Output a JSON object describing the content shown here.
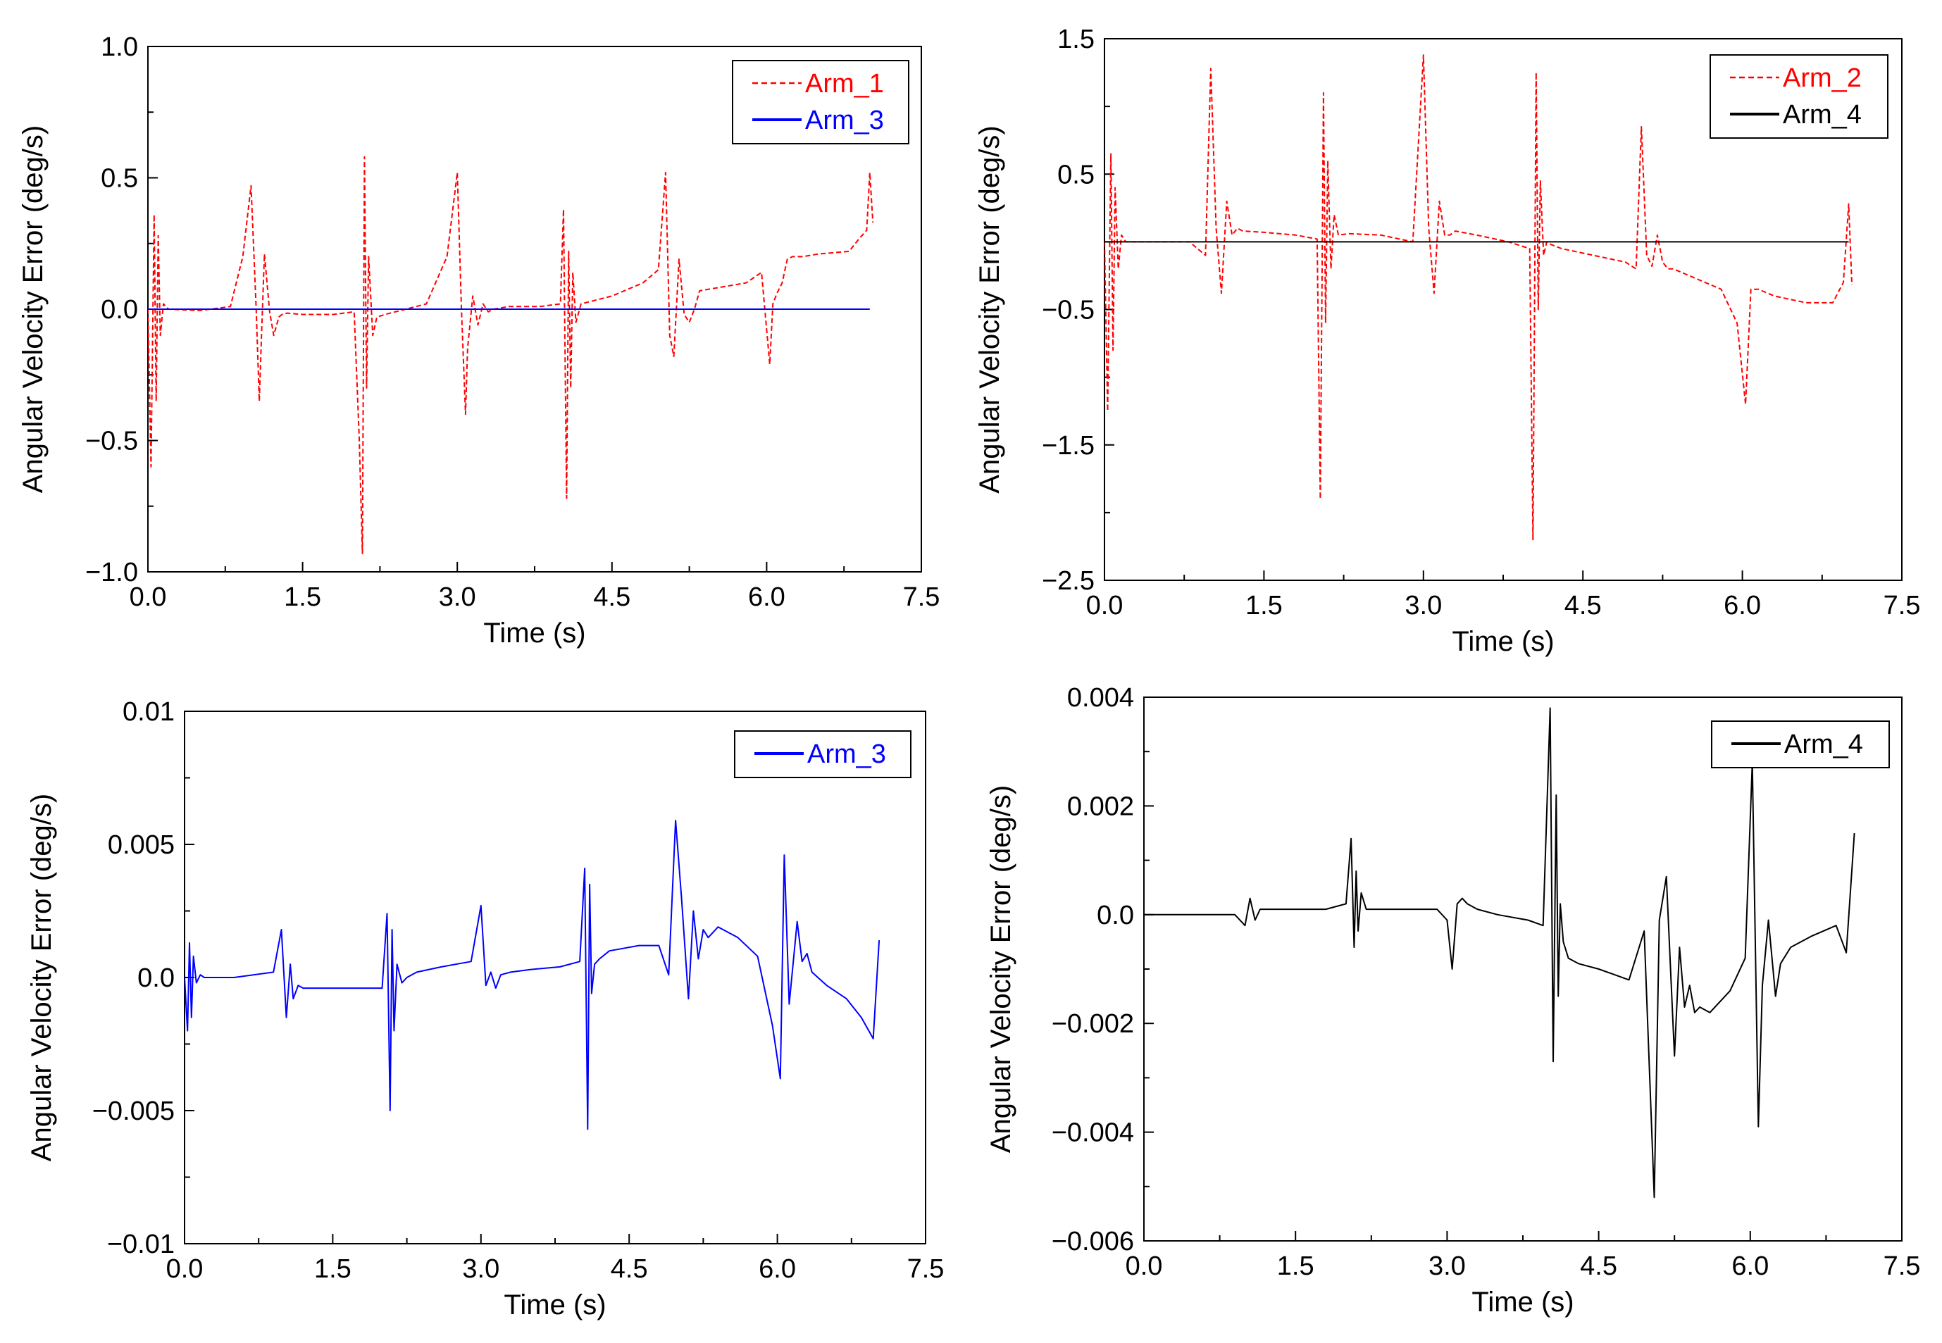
{
  "chart_data": [
    {
      "type": "line",
      "xlabel": "Time (s)",
      "ylabel": "Angular Velocity Error (deg/s)",
      "xlim": [
        0,
        7.5
      ],
      "ylim": [
        -1.0,
        1.0
      ],
      "x_ticks": [
        "0.0",
        "1.5",
        "3.0",
        "4.5",
        "6.0",
        "7.5"
      ],
      "y_ticks": [
        "1.0",
        "0.5",
        "0.0",
        "−0.5",
        "−1.0"
      ],
      "y_tick_values": [
        1.0,
        0.5,
        0.0,
        -0.5,
        -1.0
      ],
      "legend": "top-right",
      "series": [
        {
          "name": "Arm_1",
          "color": "#ff0000",
          "dash": "dashed",
          "x": [
            0,
            0.03,
            0.06,
            0.08,
            0.1,
            0.12,
            0.15,
            0.2,
            0.5,
            0.8,
            0.92,
            1.0,
            1.05,
            1.08,
            1.1,
            1.13,
            1.18,
            1.22,
            1.27,
            1.3,
            1.35,
            1.5,
            1.8,
            2.0,
            2.05,
            2.08,
            2.1,
            2.12,
            2.14,
            2.18,
            2.22,
            2.3,
            2.5,
            2.7,
            2.9,
            3.0,
            3.04,
            3.08,
            3.1,
            3.15,
            3.2,
            3.25,
            3.3,
            3.35,
            3.5,
            3.8,
            4.0,
            4.03,
            4.06,
            4.08,
            4.1,
            4.12,
            4.15,
            4.2,
            4.3,
            4.5,
            4.8,
            4.95,
            5.02,
            5.06,
            5.1,
            5.15,
            5.2,
            5.25,
            5.3,
            5.35,
            5.5,
            5.8,
            5.95,
            6.03,
            6.06,
            6.1,
            6.15,
            6.2,
            6.25,
            6.35,
            6.5,
            6.8,
            6.9,
            6.97,
            7.0,
            7.03
          ],
          "y": [
            0,
            -0.6,
            0.36,
            -0.35,
            0.28,
            -0.1,
            0.02,
            0,
            -0.005,
            0.01,
            0.2,
            0.47,
            0.0,
            -0.35,
            -0.12,
            0.21,
            -0.01,
            -0.1,
            -0.03,
            -0.02,
            -0.015,
            -0.02,
            -0.02,
            -0.01,
            -0.5,
            -0.93,
            0.58,
            -0.3,
            0.2,
            -0.1,
            -0.03,
            -0.02,
            0.0,
            0.02,
            0.2,
            0.52,
            0.0,
            -0.4,
            -0.15,
            0.05,
            -0.06,
            0.02,
            -0.01,
            0.0,
            0.01,
            0.01,
            0.02,
            0.38,
            -0.72,
            0.22,
            -0.3,
            0.14,
            -0.05,
            0.02,
            0.03,
            0.05,
            0.1,
            0.15,
            0.52,
            -0.1,
            -0.18,
            0.19,
            -0.02,
            -0.05,
            0.0,
            0.07,
            0.08,
            0.1,
            0.14,
            -0.21,
            0.02,
            0.06,
            0.1,
            0.19,
            0.2,
            0.2,
            0.21,
            0.22,
            0.27,
            0.3,
            0.52,
            0.33
          ]
        },
        {
          "name": "Arm_3",
          "color": "#0000ff",
          "dash": "solid",
          "x": [
            0,
            7.0
          ],
          "y": [
            0,
            0
          ]
        }
      ]
    },
    {
      "type": "line",
      "xlabel": "Time (s)",
      "ylabel": "Angular Velocity Error (deg/s)",
      "xlim": [
        0,
        7.5
      ],
      "ylim": [
        -2.5,
        1.5
      ],
      "x_ticks": [
        "0.0",
        "1.5",
        "3.0",
        "4.5",
        "6.0",
        "7.5"
      ],
      "y_ticks": [
        "1.5",
        "0.5",
        "−0.5",
        "−1.5",
        "−2.5"
      ],
      "y_tick_values": [
        1.5,
        0.5,
        -0.5,
        -1.5,
        -2.5
      ],
      "legend": "top-right",
      "series": [
        {
          "name": "Arm_2",
          "color": "#ff0000",
          "dash": "dashed",
          "x": [
            0,
            0.03,
            0.06,
            0.08,
            0.1,
            0.13,
            0.16,
            0.2,
            0.5,
            0.8,
            0.95,
            1.0,
            1.05,
            1.1,
            1.15,
            1.2,
            1.25,
            1.3,
            1.5,
            1.8,
            2.0,
            2.03,
            2.06,
            2.08,
            2.1,
            2.13,
            2.16,
            2.2,
            2.3,
            2.6,
            2.9,
            3.0,
            3.05,
            3.1,
            3.15,
            3.2,
            3.25,
            3.3,
            3.5,
            3.8,
            4.0,
            4.03,
            4.06,
            4.08,
            4.1,
            4.13,
            4.16,
            4.2,
            4.3,
            4.6,
            4.9,
            5.0,
            5.05,
            5.1,
            5.15,
            5.2,
            5.25,
            5.3,
            5.35,
            5.5,
            5.8,
            5.95,
            6.03,
            6.08,
            6.15,
            6.3,
            6.6,
            6.85,
            6.95,
            7.0,
            7.03
          ],
          "y": [
            0,
            -1.25,
            0.65,
            -0.8,
            0.4,
            -0.2,
            0.05,
            0,
            0,
            0,
            -0.1,
            1.28,
            0.1,
            -0.38,
            0.3,
            0.05,
            0.1,
            0.08,
            0.07,
            0.05,
            0.02,
            -1.9,
            1.1,
            -0.6,
            0.6,
            -0.2,
            0.2,
            0.05,
            0.06,
            0.05,
            0.0,
            1.38,
            0.1,
            -0.38,
            0.3,
            0.05,
            0.05,
            0.08,
            0.05,
            0.0,
            -0.05,
            -2.2,
            1.25,
            -0.5,
            0.45,
            -0.1,
            0.0,
            -0.02,
            -0.05,
            -0.1,
            -0.15,
            -0.2,
            0.85,
            -0.1,
            -0.18,
            0.05,
            -0.15,
            -0.2,
            -0.2,
            -0.25,
            -0.35,
            -0.6,
            -1.2,
            -0.35,
            -0.35,
            -0.4,
            -0.45,
            -0.45,
            -0.3,
            0.28,
            -0.32
          ]
        },
        {
          "name": "Arm_4",
          "color": "#000000",
          "dash": "solid",
          "x": [
            0,
            7.0
          ],
          "y": [
            0,
            0
          ]
        }
      ]
    },
    {
      "type": "line",
      "xlabel": "Time (s)",
      "ylabel": "Angular Velocity Error (deg/s)",
      "xlim": [
        0,
        7.5
      ],
      "ylim": [
        -0.01,
        0.01
      ],
      "x_ticks": [
        "0.0",
        "1.5",
        "3.0",
        "4.5",
        "6.0",
        "7.5"
      ],
      "y_ticks": [
        "0.01",
        "0.005",
        "0.0",
        "−0.005",
        "−0.01"
      ],
      "y_tick_values": [
        0.01,
        0.005,
        0.0,
        -0.005,
        -0.01
      ],
      "legend": "top-right",
      "series": [
        {
          "name": "Arm_3",
          "color": "#0000ff",
          "dash": "solid",
          "x": [
            0,
            0.03,
            0.05,
            0.07,
            0.09,
            0.12,
            0.16,
            0.2,
            0.5,
            0.9,
            0.98,
            1.03,
            1.07,
            1.1,
            1.15,
            1.2,
            1.3,
            1.5,
            1.8,
            2.0,
            2.05,
            2.08,
            2.1,
            2.12,
            2.15,
            2.2,
            2.25,
            2.35,
            2.6,
            2.9,
            3.0,
            3.05,
            3.1,
            3.15,
            3.2,
            3.3,
            3.5,
            3.8,
            4.0,
            4.05,
            4.08,
            4.1,
            4.12,
            4.15,
            4.2,
            4.3,
            4.6,
            4.8,
            4.9,
            4.97,
            5.03,
            5.1,
            5.15,
            5.2,
            5.25,
            5.3,
            5.4,
            5.6,
            5.8,
            5.95,
            6.03,
            6.07,
            6.12,
            6.2,
            6.25,
            6.3,
            6.35,
            6.5,
            6.7,
            6.85,
            6.97,
            7.03
          ],
          "y": [
            0,
            -0.002,
            0.0013,
            -0.0015,
            0.0008,
            -0.0002,
            0.0001,
            0,
            0,
            0.0002,
            0.0018,
            -0.0015,
            0.0005,
            -0.0008,
            -0.0003,
            -0.0004,
            -0.0004,
            -0.0004,
            -0.0004,
            -0.0004,
            0.0024,
            -0.005,
            0.0018,
            -0.002,
            0.0005,
            -0.0002,
            0.0,
            0.0002,
            0.0004,
            0.0006,
            0.0027,
            -0.0003,
            0.0002,
            -0.0004,
            0.0001,
            0.0002,
            0.0003,
            0.0004,
            0.0006,
            0.0041,
            -0.0057,
            0.0035,
            -0.0006,
            0.0005,
            0.0007,
            0.001,
            0.0012,
            0.0012,
            0.0001,
            0.0059,
            0.003,
            -0.0008,
            0.0025,
            0.0007,
            0.0018,
            0.0015,
            0.0019,
            0.0015,
            0.0008,
            -0.0018,
            -0.0038,
            0.0046,
            -0.001,
            0.0021,
            0.0006,
            0.0009,
            0.0002,
            -0.0003,
            -0.0008,
            -0.0015,
            -0.0023,
            0.0014
          ]
        }
      ]
    },
    {
      "type": "line",
      "xlabel": "Time (s)",
      "ylabel": "Angular Velocity Error (deg/s)",
      "xlim": [
        0,
        7.5
      ],
      "ylim": [
        -0.006,
        0.004
      ],
      "x_ticks": [
        "0.0",
        "1.5",
        "3.0",
        "4.5",
        "6.0",
        "7.5"
      ],
      "y_ticks": [
        "0.004",
        "0.002",
        "0.0",
        "−0.002",
        "−0.004",
        "−0.006"
      ],
      "y_tick_values": [
        0.004,
        0.002,
        0.0,
        -0.002,
        -0.004,
        -0.006
      ],
      "legend": "top-right",
      "series": [
        {
          "name": "Arm_4",
          "color": "#000000",
          "dash": "solid",
          "x": [
            0,
            0.5,
            0.9,
            1.0,
            1.05,
            1.1,
            1.15,
            1.2,
            1.5,
            1.8,
            2.0,
            2.05,
            2.08,
            2.1,
            2.12,
            2.15,
            2.2,
            2.3,
            2.6,
            2.9,
            3.0,
            3.05,
            3.1,
            3.15,
            3.2,
            3.3,
            3.5,
            3.8,
            3.95,
            4.02,
            4.05,
            4.08,
            4.1,
            4.12,
            4.15,
            4.2,
            4.3,
            4.5,
            4.8,
            4.95,
            5.05,
            5.1,
            5.17,
            5.25,
            5.3,
            5.35,
            5.4,
            5.45,
            5.5,
            5.6,
            5.8,
            5.95,
            6.02,
            6.08,
            6.12,
            6.18,
            6.25,
            6.3,
            6.4,
            6.6,
            6.85,
            6.95,
            7.03
          ],
          "y": [
            0,
            0.0,
            0.0,
            -0.0002,
            0.0003,
            -0.0001,
            0.0001,
            0.0001,
            0.0001,
            0.0001,
            0.0002,
            0.0014,
            -0.0006,
            0.0008,
            -0.0003,
            0.0004,
            0.0001,
            0.0001,
            0.0001,
            0.0001,
            -0.0001,
            -0.001,
            0.0002,
            0.0003,
            0.0002,
            0.0001,
            0.0,
            -0.0001,
            -0.0002,
            0.0038,
            -0.0027,
            0.0022,
            -0.0015,
            0.0002,
            -0.0005,
            -0.0008,
            -0.0009,
            -0.001,
            -0.0012,
            -0.0003,
            -0.0052,
            -0.0001,
            0.0007,
            -0.0026,
            -0.0006,
            -0.0017,
            -0.0013,
            -0.0018,
            -0.0017,
            -0.0018,
            -0.0014,
            -0.0008,
            0.0028,
            -0.0039,
            -0.0013,
            -0.0001,
            -0.0015,
            -0.0009,
            -0.0006,
            -0.0004,
            -0.0002,
            -0.0007,
            0.0015
          ]
        }
      ]
    }
  ]
}
